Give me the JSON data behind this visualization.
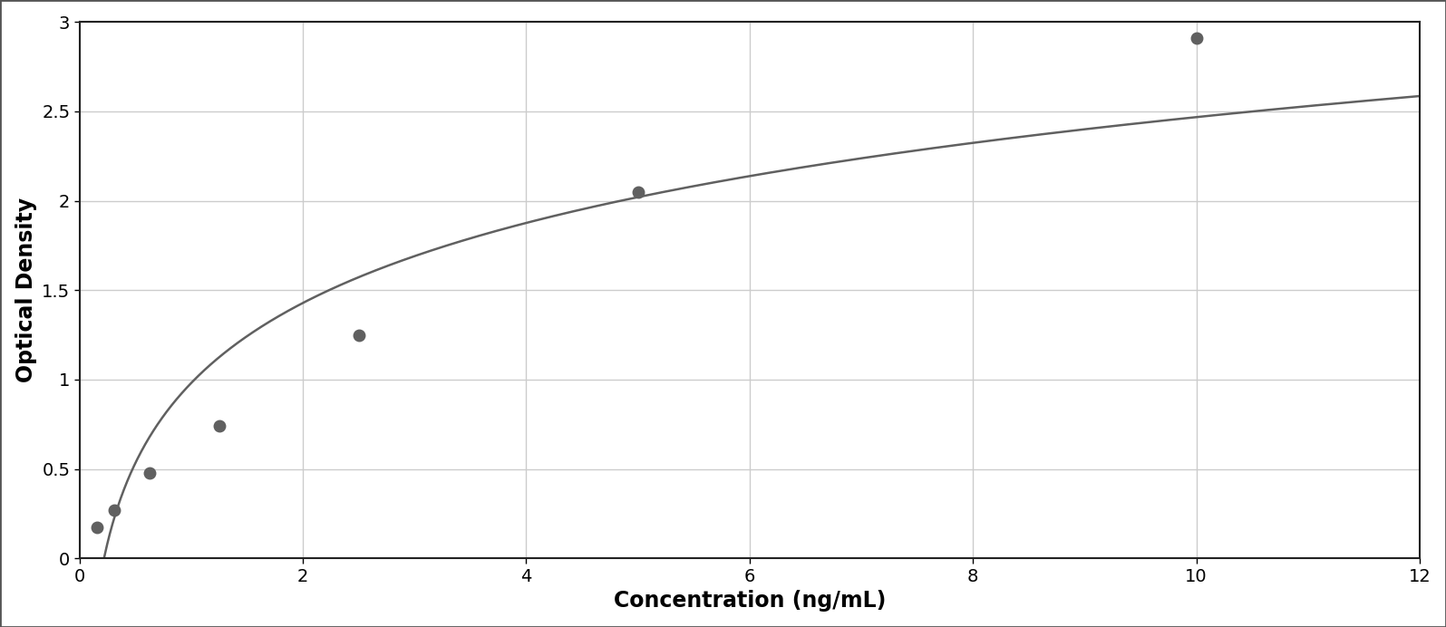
{
  "x_data": [
    0.156,
    0.312,
    0.625,
    1.25,
    2.5,
    5.0,
    10.0
  ],
  "y_data": [
    0.175,
    0.27,
    0.48,
    0.74,
    1.25,
    2.05,
    2.91
  ],
  "xlabel": "Concentration (ng/mL)",
  "ylabel": "Optical Density",
  "xlim": [
    0,
    12
  ],
  "ylim": [
    0,
    3
  ],
  "xticks": [
    0,
    2,
    4,
    6,
    8,
    10,
    12
  ],
  "yticks": [
    0,
    0.5,
    1.0,
    1.5,
    2.0,
    2.5,
    3.0
  ],
  "marker_color": "#606060",
  "line_color": "#606060",
  "marker_size": 9,
  "line_width": 1.8,
  "bg_color": "#ffffff",
  "plot_bg_color": "#ffffff",
  "grid_color": "#cccccc",
  "border_color": "#222222",
  "xlabel_fontsize": 17,
  "ylabel_fontsize": 17,
  "tick_fontsize": 14,
  "xlabel_fontweight": "bold",
  "ylabel_fontweight": "bold"
}
